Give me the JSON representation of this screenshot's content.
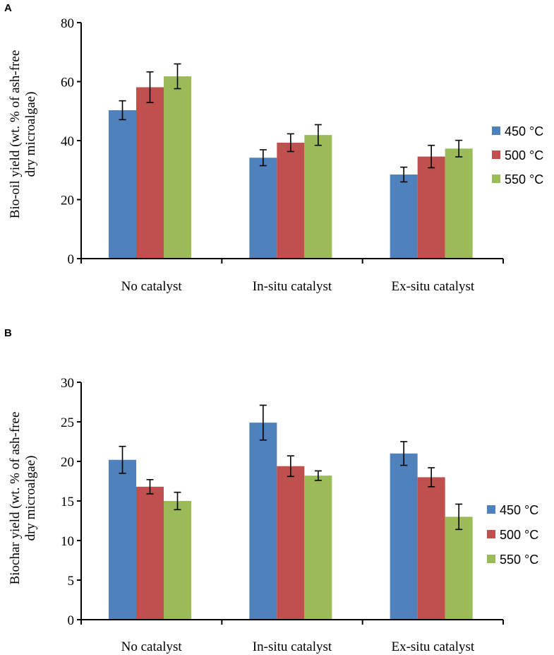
{
  "colors": {
    "450": "#4f81bd",
    "500": "#c0504d",
    "550": "#9bbb59"
  },
  "chart_data": [
    {
      "panel": "A",
      "type": "bar",
      "ylabel": [
        "Bio-oil yield (wt. % of ash-free",
        "dry microalgae)"
      ],
      "categories": [
        "No catalyst",
        "In-situ catalyst",
        "Ex-situ catalyst"
      ],
      "ylim": [
        0,
        80
      ],
      "yticks": [
        0,
        20,
        40,
        60,
        80
      ],
      "series": [
        {
          "name": "450 °C",
          "values": [
            50.3,
            34.2,
            28.5
          ],
          "errors": [
            3.2,
            2.7,
            2.5
          ]
        },
        {
          "name": "500 °C",
          "values": [
            58.1,
            39.3,
            34.6
          ],
          "errors": [
            5.2,
            3.0,
            3.8
          ]
        },
        {
          "name": "550 °C",
          "values": [
            61.8,
            41.9,
            37.3
          ],
          "errors": [
            4.2,
            3.5,
            2.8
          ]
        }
      ],
      "legend": "right"
    },
    {
      "panel": "B",
      "type": "bar",
      "ylabel": [
        "Biochar yield (wt. % of ash-free",
        "dry microalgae)"
      ],
      "categories": [
        "No catalyst",
        "In-situ catalyst",
        "Ex-situ catalyst"
      ],
      "ylim": [
        0,
        30
      ],
      "yticks": [
        0,
        5,
        10,
        15,
        20,
        25,
        30
      ],
      "series": [
        {
          "name": "450 °C",
          "values": [
            20.2,
            24.9,
            21.0
          ],
          "errors": [
            1.7,
            2.2,
            1.5
          ]
        },
        {
          "name": "500 °C",
          "values": [
            16.8,
            19.4,
            18.0
          ],
          "errors": [
            0.9,
            1.3,
            1.2
          ]
        },
        {
          "name": "550 °C",
          "values": [
            15.0,
            18.2,
            13.0
          ],
          "errors": [
            1.1,
            0.6,
            1.6
          ]
        }
      ],
      "legend": "right"
    }
  ]
}
